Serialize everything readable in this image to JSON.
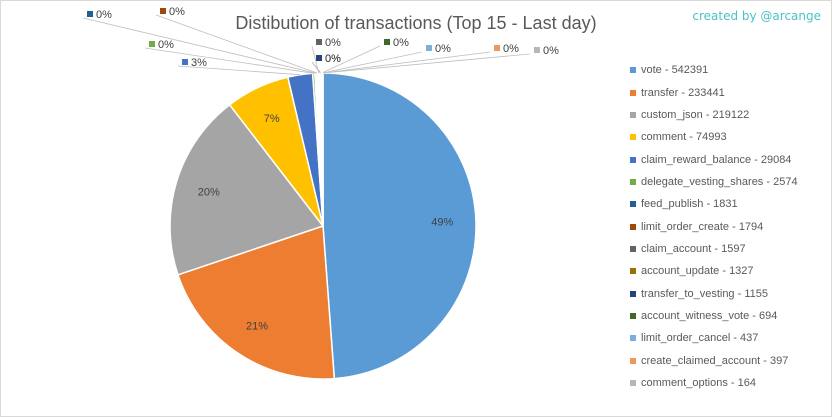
{
  "header": {
    "title": "Distibution of transactions (Top 15 - Last day)",
    "credit": "created by @arcange"
  },
  "chart_data": {
    "type": "pie",
    "title": "Distibution of transactions (Top 15 - Last day)",
    "legend_position": "right",
    "slices": [
      {
        "name": "vote",
        "value": 542391,
        "label": "49%",
        "color": "#5b9bd5"
      },
      {
        "name": "transfer",
        "value": 233441,
        "label": "21%",
        "color": "#ed7d31"
      },
      {
        "name": "custom_json",
        "value": 219122,
        "label": "20%",
        "color": "#a5a5a5"
      },
      {
        "name": "comment",
        "value": 74993,
        "label": "7%",
        "color": "#ffc000"
      },
      {
        "name": "claim_reward_balance",
        "value": 29084,
        "label": "3%",
        "color": "#4472c4"
      },
      {
        "name": "delegate_vesting_shares",
        "value": 2574,
        "label": "0%",
        "color": "#70ad47"
      },
      {
        "name": "feed_publish",
        "value": 1831,
        "label": "0%",
        "color": "#255e91"
      },
      {
        "name": "limit_order_create",
        "value": 1794,
        "label": "0%",
        "color": "#9e480e"
      },
      {
        "name": "claim_account",
        "value": 1597,
        "label": "0%",
        "color": "#636363"
      },
      {
        "name": "account_update",
        "value": 1327,
        "label": "0%",
        "color": "#997300"
      },
      {
        "name": "transfer_to_vesting",
        "value": 1155,
        "label": "0%",
        "color": "#264478"
      },
      {
        "name": "account_witness_vote",
        "value": 694,
        "label": "0%",
        "color": "#43682b"
      },
      {
        "name": "limit_order_cancel",
        "value": 437,
        "label": "0%",
        "color": "#7cafdd"
      },
      {
        "name": "create_claimed_account",
        "value": 397,
        "label": "0%",
        "color": "#f1975a"
      },
      {
        "name": "comment_options",
        "value": 164,
        "label": "0%",
        "color": "#b7b7b7"
      }
    ],
    "legend": [
      "vote - 542391",
      "transfer - 233441",
      "custom_json - 219122",
      "comment - 74993",
      "claim_reward_balance - 29084",
      "delegate_vesting_shares - 2574",
      "feed_publish - 1831",
      "limit_order_create - 1794",
      "claim_account - 1597",
      "account_update - 1327",
      "transfer_to_vesting - 1155",
      "account_witness_vote - 694",
      "limit_order_cancel - 437",
      "create_claimed_account - 397",
      "comment_options - 164"
    ]
  }
}
